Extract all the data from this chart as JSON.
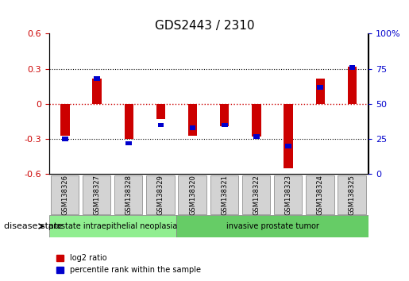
{
  "title": "GDS2443 / 2310",
  "samples": [
    "GSM138326",
    "GSM138327",
    "GSM138328",
    "GSM138329",
    "GSM138320",
    "GSM138321",
    "GSM138322",
    "GSM138323",
    "GSM138324",
    "GSM138325"
  ],
  "log2_ratio": [
    -0.27,
    0.22,
    -0.3,
    -0.13,
    -0.27,
    -0.19,
    -0.28,
    -0.55,
    0.22,
    0.32
  ],
  "percentile_rank": [
    25,
    68,
    22,
    35,
    33,
    35,
    27,
    20,
    62,
    76
  ],
  "ylim": [
    -0.6,
    0.6
  ],
  "yticks_left": [
    -0.6,
    -0.3,
    0.0,
    0.3,
    0.6
  ],
  "yticks_right": [
    0,
    25,
    50,
    75,
    100
  ],
  "hlines": [
    0.3,
    0.0,
    -0.3
  ],
  "bar_width": 0.35,
  "red_color": "#cc0000",
  "blue_color": "#0000cc",
  "disease_groups": [
    {
      "label": "prostate intraepithelial neoplasia",
      "start": 0,
      "end": 4,
      "color": "#90ee90"
    },
    {
      "label": "invasive prostate tumor",
      "start": 4,
      "end": 10,
      "color": "#66cc66"
    }
  ],
  "disease_state_label": "disease state",
  "legend_red": "log2 ratio",
  "legend_blue": "percentile rank within the sample",
  "zero_line_color": "#cc0000",
  "dotted_line_color": "#000000",
  "background_color": "#ffffff",
  "tick_label_color_left": "#cc0000",
  "tick_label_color_right": "#0000cc",
  "grid_bg": "#e8e8e8"
}
